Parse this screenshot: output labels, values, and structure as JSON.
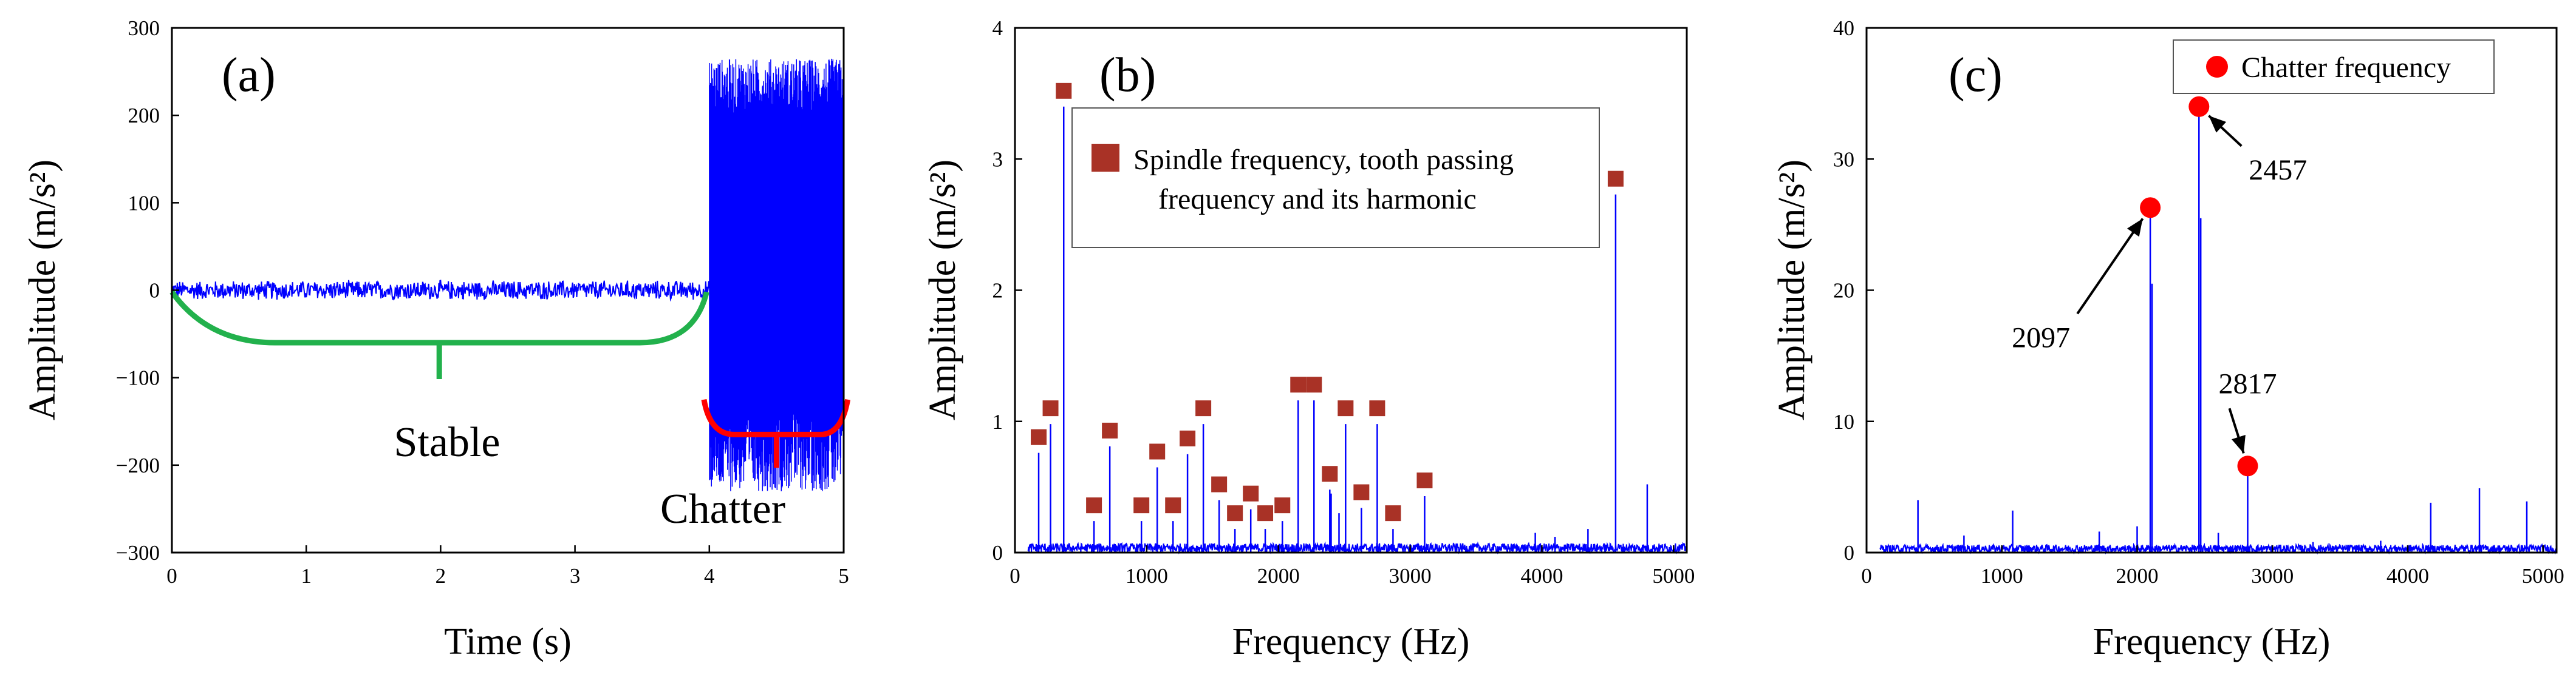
{
  "chart_data": [
    {
      "type": "line",
      "panel_label": "(a)",
      "xlabel": "Time  (s)",
      "ylabel": "Amplitude  (m/s²)",
      "xlim": [
        0,
        5
      ],
      "ylim": [
        -300,
        300
      ],
      "xticks": [
        "0",
        "1",
        "2",
        "3",
        "4",
        "5"
      ],
      "yticks": [
        "300",
        "200",
        "100",
        "0",
        "−100",
        "−200",
        "−300"
      ],
      "series": [
        {
          "name": "stable",
          "x_range": [
            0,
            4.0
          ],
          "envelope": [
            -12,
            12
          ]
        },
        {
          "name": "chatter",
          "x_range": [
            4.0,
            5.0
          ],
          "envelope": [
            -230,
            265
          ]
        }
      ],
      "annotations": [
        {
          "text": "Stable",
          "x_range": [
            0,
            4.0
          ],
          "color": "#22b14c"
        },
        {
          "text": "Chatter",
          "x_range": [
            4.0,
            5.0
          ],
          "color": "#ff0000"
        }
      ]
    },
    {
      "type": "line",
      "panel_label": "(b)",
      "xlabel": "Frequency  (Hz)",
      "ylabel": "Amplitude  (m/s²)",
      "xlim": [
        0,
        5100
      ],
      "ylim": [
        0,
        4
      ],
      "xticks": [
        "0",
        "1000",
        "2000",
        "3000",
        "4000",
        "5000"
      ],
      "yticks": [
        "4",
        "3",
        "2",
        "1",
        "0"
      ],
      "legend": "Spindle frequency, tooth passing frequency and its harmonic",
      "legend_line1": "Spindle frequency, tooth passing",
      "legend_line2": "frequency and its harmonic",
      "marker_color": "#a93226",
      "markers": [
        {
          "x": 180,
          "y": 0.88
        },
        {
          "x": 270,
          "y": 1.1
        },
        {
          "x": 370,
          "y": 3.52
        },
        {
          "x": 600,
          "y": 0.36
        },
        {
          "x": 720,
          "y": 0.93
        },
        {
          "x": 960,
          "y": 0.36
        },
        {
          "x": 1080,
          "y": 0.77
        },
        {
          "x": 1200,
          "y": 0.36
        },
        {
          "x": 1310,
          "y": 0.87
        },
        {
          "x": 1430,
          "y": 1.1
        },
        {
          "x": 1550,
          "y": 0.52
        },
        {
          "x": 1670,
          "y": 0.3
        },
        {
          "x": 1790,
          "y": 0.45
        },
        {
          "x": 1900,
          "y": 0.3
        },
        {
          "x": 2030,
          "y": 0.36
        },
        {
          "x": 2150,
          "y": 1.28
        },
        {
          "x": 2270,
          "y": 1.28
        },
        {
          "x": 2390,
          "y": 0.6
        },
        {
          "x": 2510,
          "y": 1.1
        },
        {
          "x": 2630,
          "y": 0.46
        },
        {
          "x": 2750,
          "y": 1.1
        },
        {
          "x": 2870,
          "y": 0.3
        },
        {
          "x": 3110,
          "y": 0.55
        },
        {
          "x": 4560,
          "y": 2.85
        }
      ]
    },
    {
      "type": "line",
      "panel_label": "(c)",
      "xlabel": "Frequency  (Hz)",
      "ylabel": "Amplitude  (m/s²)",
      "xlim": [
        0,
        5100
      ],
      "ylim": [
        0,
        40
      ],
      "xticks": [
        "0",
        "1000",
        "2000",
        "3000",
        "4000",
        "5000"
      ],
      "yticks": [
        "40",
        "30",
        "20",
        "10",
        "0"
      ],
      "legend": "Chatter frequency",
      "marker_color": "#ff0000",
      "chatter_points": [
        {
          "x": 2097,
          "y": 26.3,
          "label": "2097"
        },
        {
          "x": 2457,
          "y": 34.0,
          "label": "2457"
        },
        {
          "x": 2817,
          "y": 6.6,
          "label": "2817"
        }
      ]
    }
  ]
}
